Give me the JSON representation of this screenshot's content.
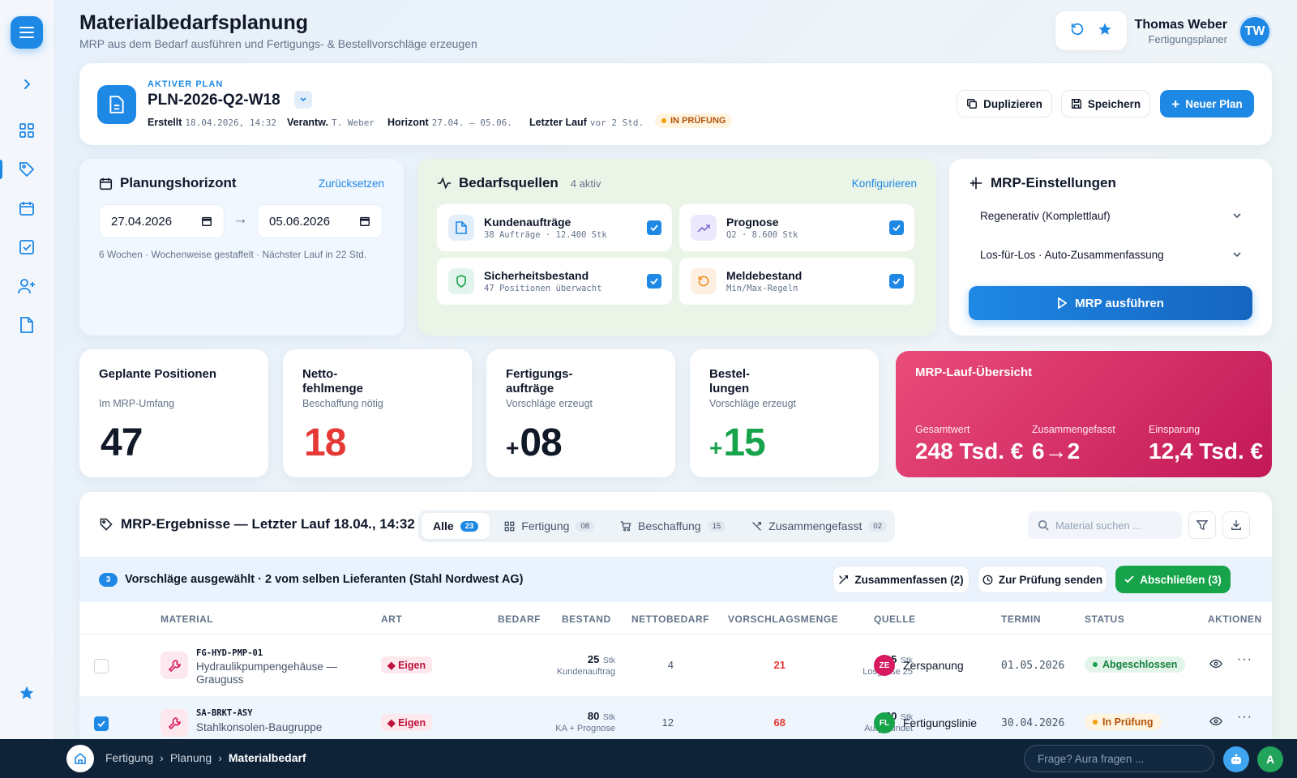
{
  "header": {
    "title": "Materialbedarfsplanung",
    "subtitle": "MRP aus dem Bedarf ausführen und Fertigungs- & Bestellvorschläge erzeugen"
  },
  "user": {
    "name": "Thomas Weber",
    "role": "Fertigungsplaner",
    "initials": "TW"
  },
  "plan": {
    "tag": "AKTIVER PLAN",
    "id": "PLN-2026-Q2-W18",
    "created_label": "Erstellt",
    "created": "18.04.2026, 14:32",
    "owner_label": "Verantw.",
    "owner": "T. Weber",
    "horizon_label": "Horizont",
    "horizon": "27.04. – 05.06.",
    "lastrun_label": "Letzter Lauf",
    "lastrun": "vor 2 Std.",
    "status": "IN PRÜFUNG",
    "btn_duplicate": "Duplizieren",
    "btn_save": "Speichern",
    "btn_new": "Neuer Plan"
  },
  "horizon": {
    "title": "Planungshorizont",
    "reset": "Zurücksetzen",
    "from": "27.04.2026",
    "arrow": "→",
    "to": "05.06.2026",
    "note": "6 Wochen · Wochenweise gestaffelt · Nächster Lauf in 22 Std."
  },
  "sources": {
    "title": "Bedarfsquellen",
    "active": "4 aktiv",
    "configure": "Konfigurieren",
    "items": [
      {
        "title": "Kundenaufträge",
        "sub": "38 Aufträge · 12.400 Stk"
      },
      {
        "title": "Prognose",
        "sub": "Q2 · 8.600 Stk"
      },
      {
        "title": "Sicherheitsbestand",
        "sub": "47 Positionen überwacht"
      },
      {
        "title": "Meldebestand",
        "sub": "Min/Max-Regeln"
      }
    ]
  },
  "mrp": {
    "title": "MRP-Einstellungen",
    "mode": "Regenerativ (Komplettlauf)",
    "lot": "Los-für-Los · Auto-Zusammenfassung",
    "run": "MRP ausführen"
  },
  "kpis": [
    {
      "label": "Geplante Positionen",
      "sub": "Im MRP-Umfang",
      "prefix": "",
      "value": "47",
      "color": "#111827"
    },
    {
      "label": "Netto-fehlmenge",
      "sub": "Beschaffung nötig",
      "prefix": "",
      "value": "18",
      "color": "#e53935"
    },
    {
      "label": "Fertigungs-aufträge",
      "sub": "Vorschläge erzeugt",
      "prefix": "+",
      "value": "08",
      "color": "#111827"
    },
    {
      "label": "Bestel-lungen",
      "sub": "Vorschläge erzeugt",
      "prefix": "+",
      "value": "15",
      "color": "#16a34a"
    }
  ],
  "overview": {
    "title": "MRP-Lauf-Übersicht",
    "total_label": "Gesamtwert",
    "total": "248 Tsd. €",
    "merged_label": "Zusammengefasst",
    "merged": "6→2",
    "saving_label": "Einsparung",
    "saving": "12,4 Tsd. €"
  },
  "results": {
    "title": "MRP-Ergebnisse — Letzter Lauf 18.04., 14:32",
    "tabs": [
      {
        "label": "Alle",
        "count": "23"
      },
      {
        "label": "Fertigung",
        "count": "08"
      },
      {
        "label": "Beschaffung",
        "count": "15"
      },
      {
        "label": "Zusammengefasst",
        "count": "02"
      }
    ],
    "search_placeholder": "Material suchen ...",
    "selection": {
      "count": "3",
      "text": "Vorschläge ausgewählt · 2 vom selben Lieferanten (Stahl Nordwest AG)",
      "merge": "Zusammenfassen (2)",
      "review": "Zur Prüfung senden",
      "close": "Abschließen (3)"
    },
    "columns": [
      "MATERIAL",
      "ART",
      "BEDARF",
      "BESTAND",
      "NETTOBEDARF",
      "VORSCHLAGSMENGE",
      "QUELLE",
      "TERMIN",
      "STATUS",
      "AKTIONEN"
    ],
    "rows": [
      {
        "code": "FG-HYD-PMP-01",
        "name": "Hydraulikpumpengehäuse — Grauguss",
        "art": "Eigen",
        "demand": "25",
        "demand_unit": "Stk",
        "demand_src": "Kundenauftrag",
        "stock": "4",
        "net": "21",
        "qty": "25",
        "qty_unit": "Stk",
        "qty_note": "Losgröße 25",
        "src_init": "ZE",
        "src": "Zerspanung",
        "src_color": "#d81b60",
        "date": "01.05.2026",
        "status": "Abgeschlossen",
        "status_bg": "#e3f5ea",
        "status_fg": "#15803d",
        "checked": false
      },
      {
        "code": "SA-BRKT-ASY",
        "name": "Stahlkonsolen-Baugruppe",
        "art": "Eigen",
        "demand": "80",
        "demand_unit": "Stk",
        "demand_src": "KA + Prognose",
        "stock": "12",
        "net": "68",
        "qty": "80",
        "qty_unit": "Stk",
        "qty_note": "Aufgerundet",
        "src_init": "FL",
        "src": "Fertigungslinie",
        "src_color": "#16a34a",
        "date": "30.04.2026",
        "status": "In Prüfung",
        "status_bg": "#fff4e0",
        "status_fg": "#b45309",
        "checked": true
      }
    ]
  },
  "footer": {
    "crumbs": [
      "Fertigung",
      "›",
      "Planung",
      "›",
      "Materialbedarf"
    ],
    "ask_placeholder": "Frage? Aura fragen ...",
    "avatar": "A"
  }
}
